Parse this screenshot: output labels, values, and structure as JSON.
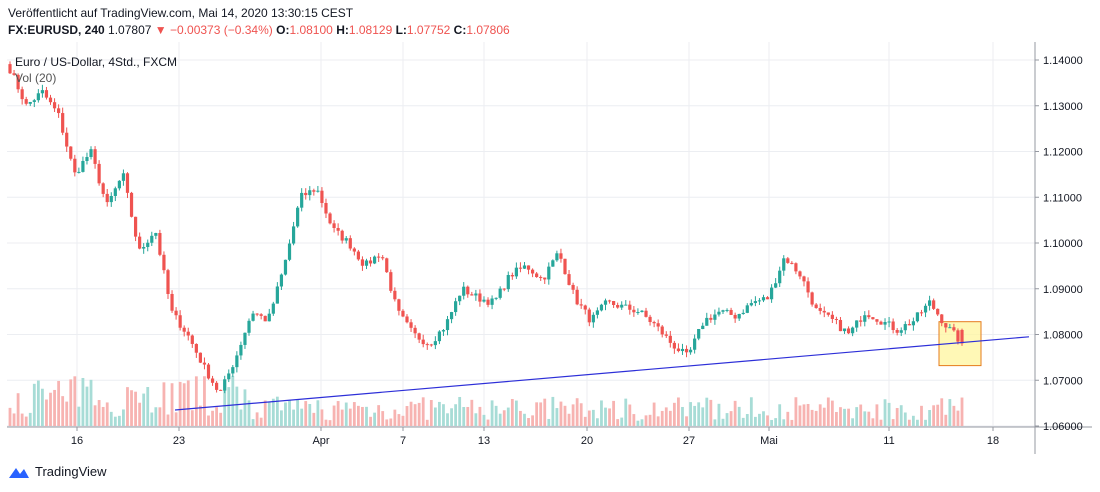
{
  "header": {
    "published": "Veröffentlicht auf TradingView.com, Mai 14, 2020 13:30:15 CEST",
    "symbol": "FX:EURUSD, 240",
    "last": "1.07807",
    "change": "−0.00373 (−0.34%)",
    "o_label": "O:",
    "o": "1.08100",
    "h_label": "H:",
    "h": "1.08129",
    "l_label": "L:",
    "l": "1.07752",
    "c_label": "C:",
    "c": "1.07806"
  },
  "legend": {
    "name": "Euro / US-Dollar, 4Std., FXCM",
    "volume": "Vol (20)"
  },
  "footer": {
    "brand": "TradingView"
  },
  "colors": {
    "up": "#26a69a",
    "down": "#ef5350",
    "trendline": "#2d2fd8",
    "box_fill": "#fff59d",
    "box_stroke": "#e57b1e",
    "grid": "#eceef2"
  },
  "chart_data": {
    "type": "candlestick",
    "ylim": [
      1.06,
      1.14
    ],
    "y_ticks": [
      "1.14000",
      "1.13000",
      "1.12000",
      "1.11000",
      "1.10000",
      "1.09000",
      "1.08000",
      "1.07000",
      "1.06000"
    ],
    "x_ticks": [
      "16",
      "23",
      "Apr",
      "7",
      "13",
      "20",
      "27",
      "Mai",
      "11",
      "18"
    ],
    "close_path": [
      1.138,
      1.13,
      1.133,
      1.128,
      1.115,
      1.12,
      1.108,
      1.115,
      1.098,
      1.103,
      1.085,
      1.08,
      1.073,
      1.067,
      1.075,
      1.085,
      1.083,
      1.095,
      1.11,
      1.112,
      1.103,
      1.1,
      1.095,
      1.098,
      1.085,
      1.08,
      1.078,
      1.082,
      1.09,
      1.088,
      1.087,
      1.093,
      1.095,
      1.092,
      1.098,
      1.088,
      1.083,
      1.087,
      1.086,
      1.085,
      1.082,
      1.078,
      1.075,
      1.083,
      1.085,
      1.084,
      1.087,
      1.088,
      1.097,
      1.093,
      1.085,
      1.083,
      1.08,
      1.085,
      1.083,
      1.081,
      1.083,
      1.087,
      1.082,
      1.0781
    ],
    "trendline": {
      "start": {
        "x_label": "23",
        "y": 1.0635
      },
      "end": {
        "y": 1.0795
      }
    },
    "highlight_box": {
      "y_top": 1.0828,
      "y_bottom": 1.0732
    },
    "last_candle": {
      "open": 1.081,
      "high": 1.08129,
      "low": 1.07752,
      "close": 1.07806
    }
  }
}
